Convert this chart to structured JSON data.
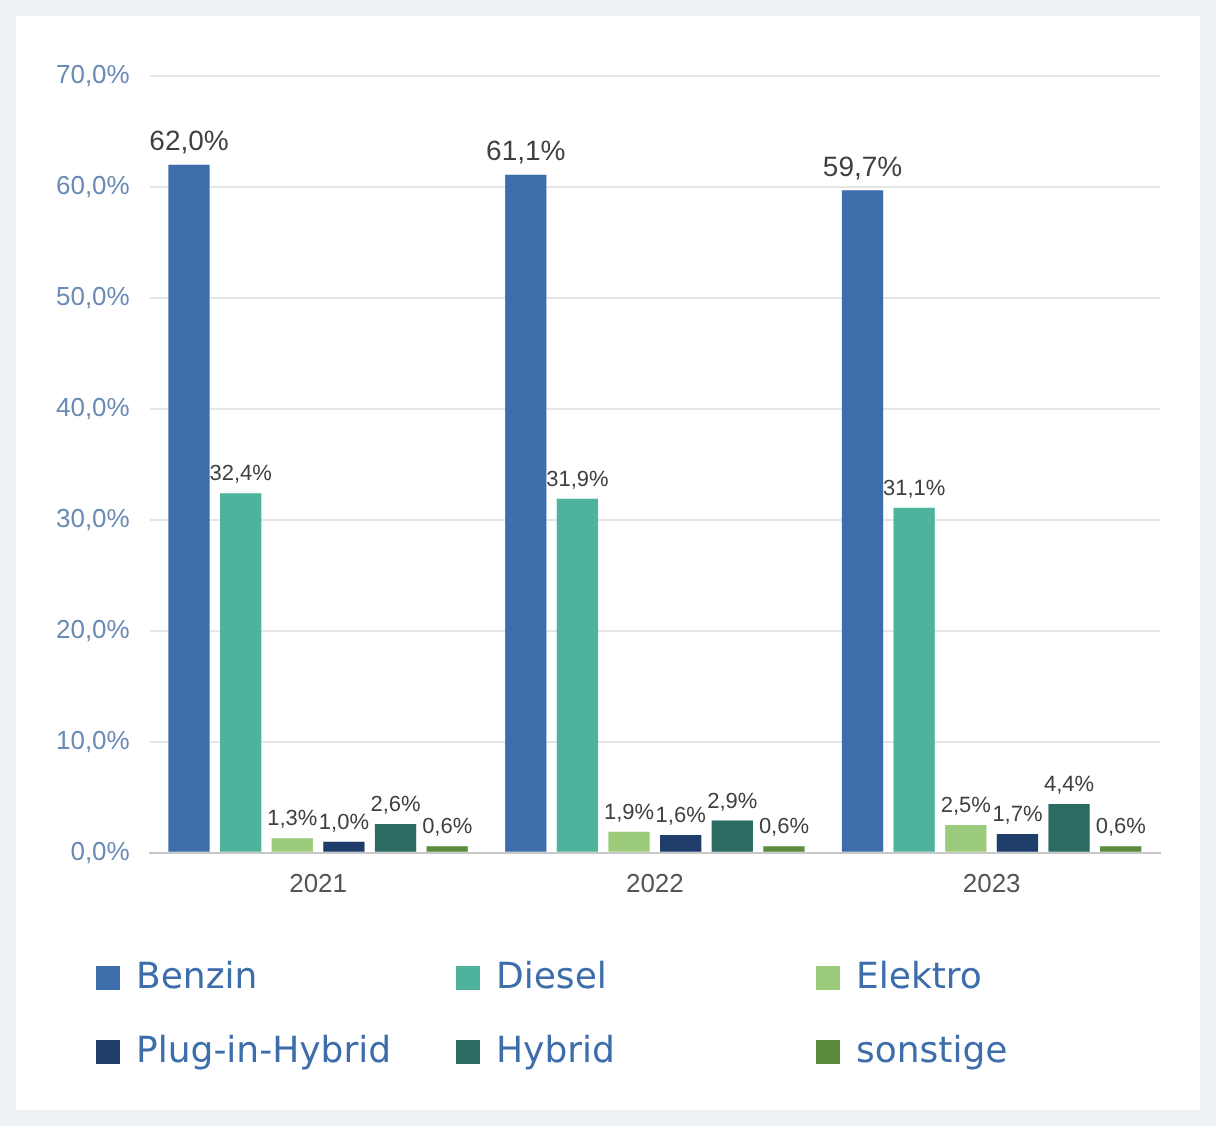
{
  "chart_data": {
    "type": "bar",
    "categories": [
      "2021",
      "2022",
      "2023"
    ],
    "series": [
      {
        "name": "Benzin",
        "color": "#3d6eab",
        "values": [
          62.0,
          61.1,
          59.7
        ],
        "value_labels": [
          "62,0%",
          "61,1%",
          "59,7%"
        ]
      },
      {
        "name": "Diesel",
        "color": "#4eb39c",
        "values": [
          32.4,
          31.9,
          31.1
        ],
        "value_labels": [
          "32,4%",
          "31,9%",
          "31,1%"
        ]
      },
      {
        "name": "Elektro",
        "color": "#9ccb7c",
        "values": [
          1.3,
          1.9,
          2.5
        ],
        "value_labels": [
          "1,3%",
          "1,9%",
          "2,5%"
        ]
      },
      {
        "name": "Plug-in-Hybrid",
        "color": "#1f3d6b",
        "values": [
          1.0,
          1.6,
          1.7
        ],
        "value_labels": [
          "1,0%",
          "1,6%",
          "1,7%"
        ]
      },
      {
        "name": "Hybrid",
        "color": "#2b6b62",
        "values": [
          2.6,
          2.9,
          4.4
        ],
        "value_labels": [
          "2,6%",
          "2,9%",
          "4,4%"
        ]
      },
      {
        "name": "sonstige",
        "color": "#5b8c3e",
        "values": [
          0.6,
          0.6,
          0.6
        ],
        "value_labels": [
          "0,6%",
          "0,6%",
          "0,6%"
        ]
      }
    ],
    "ylim": [
      0,
      70
    ],
    "yticks": [
      {
        "value": 0,
        "label": "0,0%"
      },
      {
        "value": 10,
        "label": "10,0%"
      },
      {
        "value": 20,
        "label": "20,0%"
      },
      {
        "value": 30,
        "label": "30,0%"
      },
      {
        "value": 40,
        "label": "40,0%"
      },
      {
        "value": 50,
        "label": "50,0%"
      },
      {
        "value": 60,
        "label": "60,0%"
      },
      {
        "value": 70,
        "label": "70,0%"
      }
    ],
    "grid": "y",
    "legend": "bottom"
  }
}
